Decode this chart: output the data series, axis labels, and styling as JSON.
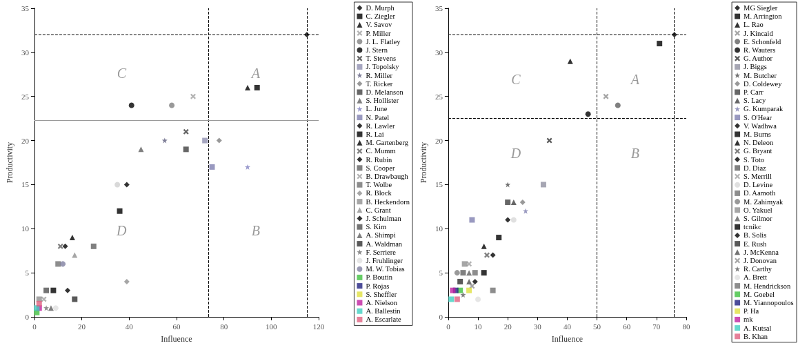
{
  "chart_data": [
    {
      "type": "scatter",
      "xlabel": "Influence",
      "ylabel": "Productivity",
      "xlim": [
        0,
        120
      ],
      "xticks": [
        0,
        20,
        40,
        60,
        80,
        100,
        120
      ],
      "ylim": [
        0,
        35
      ],
      "yticks": [
        0,
        5,
        10,
        15,
        20,
        25,
        30,
        35
      ],
      "grid": false,
      "legend": "right",
      "annotations": [
        "C",
        "A",
        "D",
        "B"
      ],
      "ref_lines": [
        {
          "axis": "y",
          "value": 32,
          "color": "#000000",
          "line_style": "dashed"
        },
        {
          "axis": "x",
          "value": 73.5,
          "color": "#000000",
          "line_style": "dashed"
        },
        {
          "axis": "x",
          "value": 115,
          "color": "#000000",
          "line_style": "dashed"
        },
        {
          "axis": "y",
          "value": 22.3,
          "color": "#999999",
          "line_style": "solid"
        }
      ],
      "series": [
        {
          "name": "D. Murph",
          "marker": "diamond",
          "color": "#000000",
          "x": [
            115
          ],
          "values": [
            32
          ]
        },
        {
          "name": "C. Ziegler",
          "marker": "square",
          "color": "#000000",
          "x": [
            94
          ],
          "values": [
            26
          ]
        },
        {
          "name": "V. Savov",
          "marker": "triangle",
          "color": "#000000",
          "x": [
            90
          ],
          "values": [
            26
          ]
        },
        {
          "name": "P. Miller",
          "marker": "cross",
          "color": "#a0a0a0",
          "x": [
            67
          ],
          "values": [
            25
          ]
        },
        {
          "name": "J. L. Flatley",
          "marker": "circle",
          "color": "#808080",
          "x": [
            58
          ],
          "values": [
            24
          ]
        },
        {
          "name": "J. Stern",
          "marker": "circle",
          "color": "#000000",
          "x": [
            41
          ],
          "values": [
            24
          ]
        },
        {
          "name": "T. Stevens",
          "marker": "cross",
          "color": "#404040",
          "x": [
            64
          ],
          "values": [
            21
          ]
        },
        {
          "name": "J. Topolsky",
          "marker": "square",
          "color": "#9090b0",
          "x": [
            72
          ],
          "values": [
            20
          ]
        },
        {
          "name": "R. Miller",
          "marker": "star",
          "color": "#606080",
          "x": [
            55
          ],
          "values": [
            20
          ]
        },
        {
          "name": "T. Ricker",
          "marker": "diamond",
          "color": "#808080",
          "x": [
            78
          ],
          "values": [
            20
          ]
        },
        {
          "name": "D. Melanson",
          "marker": "square",
          "color": "#404040",
          "x": [
            64
          ],
          "values": [
            19
          ]
        },
        {
          "name": "S. Hollister",
          "marker": "triangle",
          "color": "#606060",
          "x": [
            45
          ],
          "values": [
            19
          ]
        },
        {
          "name": "L. June",
          "marker": "star",
          "color": "#8080c0",
          "x": [
            90
          ],
          "values": [
            17
          ]
        },
        {
          "name": "N. Patel",
          "marker": "square",
          "color": "#8080b0",
          "x": [
            75
          ],
          "values": [
            17
          ]
        },
        {
          "name": "R. Lawler",
          "marker": "diamond",
          "color": "#000000",
          "x": [
            39
          ],
          "values": [
            15
          ]
        },
        {
          "name": "R. Lai",
          "marker": "square",
          "color": "#000000",
          "x": [
            36
          ],
          "values": [
            12
          ]
        },
        {
          "name": "M. Gartenberg",
          "marker": "triangle",
          "color": "#000000",
          "x": [
            16
          ],
          "values": [
            9
          ]
        },
        {
          "name": "C. Mumm",
          "marker": "cross",
          "color": "#606060",
          "x": [
            11
          ],
          "values": [
            8
          ]
        },
        {
          "name": "R. Rubin",
          "marker": "diamond",
          "color": "#000000",
          "x": [
            13
          ],
          "values": [
            8
          ]
        },
        {
          "name": "S. Cooper",
          "marker": "square",
          "color": "#606060",
          "x": [
            25
          ],
          "values": [
            8
          ]
        },
        {
          "name": "B. Drawbaugh",
          "marker": "cross",
          "color": "#a0a0a0",
          "x": [
            4
          ],
          "values": [
            2
          ]
        },
        {
          "marker": "circle",
          "color": "#d0d0d0",
          "x": [
            35
          ],
          "values": [
            15
          ]
        },
        {
          "name": "T. Wolbe",
          "marker": "square",
          "color": "#707070",
          "x": [
            10
          ],
          "values": [
            6
          ]
        },
        {
          "name": "R. Block",
          "marker": "diamond",
          "color": "#909090",
          "x": [
            39
          ],
          "values": [
            4
          ]
        },
        {
          "name": "B. Heckendorn",
          "marker": "square",
          "color": "#909090",
          "x": [
            2
          ],
          "values": [
            2
          ]
        },
        {
          "name": "C. Grant",
          "marker": "triangle",
          "color": "#909090",
          "x": [
            17
          ],
          "values": [
            7
          ]
        },
        {
          "marker": "square",
          "color": "#000000",
          "x": [
            8
          ],
          "values": [
            3
          ]
        },
        {
          "name": "J. Schulman",
          "marker": "diamond",
          "color": "#000000",
          "x": [
            14
          ],
          "values": [
            3
          ]
        },
        {
          "name": "S. Kim",
          "marker": "square",
          "color": "#505050",
          "x": [
            5
          ],
          "values": [
            3
          ]
        },
        {
          "name": "A. Shimpi",
          "marker": "triangle",
          "color": "#606060",
          "x": [
            7
          ],
          "values": [
            1
          ]
        },
        {
          "name": "A. Waldman",
          "marker": "square",
          "color": "#303030",
          "x": [
            17
          ],
          "values": [
            2
          ]
        },
        {
          "name": "F. Serriere",
          "marker": "star",
          "color": "#707070",
          "x": [
            5
          ],
          "values": [
            1
          ]
        },
        {
          "name": "J. Fruhlinger",
          "marker": "circle",
          "color": "#e0e0e0",
          "x": [
            9
          ],
          "values": [
            1
          ]
        },
        {
          "name": "M. W. Tobias",
          "marker": "circle",
          "color": "#8080a0",
          "x": [
            12
          ],
          "values": [
            6
          ]
        },
        {
          "name": "P. Boutin",
          "marker": "square",
          "color": "#40c040",
          "x": [
            1
          ],
          "values": [
            0.5
          ]
        },
        {
          "name": "P. Rojas",
          "marker": "square",
          "color": "#202080",
          "x": [
            null
          ],
          "values": [
            null
          ]
        },
        {
          "name": "S. Sheffler",
          "marker": "square",
          "color": "#e0e040",
          "x": [
            null
          ],
          "values": [
            null
          ]
        },
        {
          "name": "A. Nielson",
          "marker": "square",
          "color": "#c020a0",
          "x": [
            2
          ],
          "values": [
            1
          ]
        },
        {
          "name": "A. Ballestin",
          "marker": "square",
          "color": "#40d0c0",
          "x": [
            1
          ],
          "values": [
            1
          ]
        },
        {
          "name": "A. Escarlate",
          "marker": "square",
          "color": "#e06080",
          "x": [
            2
          ],
          "values": [
            1.5
          ]
        }
      ]
    },
    {
      "type": "scatter",
      "xlabel": "Influence",
      "ylabel": "Productivity",
      "xlim": [
        0,
        80
      ],
      "xticks": [
        0,
        10,
        20,
        30,
        40,
        50,
        60,
        70,
        80
      ],
      "ylim": [
        0,
        35
      ],
      "yticks": [
        0,
        5,
        10,
        15,
        20,
        25,
        30,
        35
      ],
      "grid": false,
      "legend": "right",
      "annotations": [
        "C",
        "A",
        "D",
        "B"
      ],
      "ref_lines": [
        {
          "axis": "y",
          "value": 32,
          "color": "#000000",
          "line_style": "dashed"
        },
        {
          "axis": "y",
          "value": 22.5,
          "color": "#000000",
          "line_style": "dashed"
        },
        {
          "axis": "x",
          "value": 50,
          "color": "#000000",
          "line_style": "dashed"
        },
        {
          "axis": "x",
          "value": 76,
          "color": "#000000",
          "line_style": "dashed"
        }
      ],
      "series": [
        {
          "name": "MG Siegler",
          "marker": "diamond",
          "color": "#000000",
          "x": [
            76
          ],
          "values": [
            32
          ]
        },
        {
          "name": "M. Arrington",
          "marker": "square",
          "color": "#000000",
          "x": [
            71
          ],
          "values": [
            31
          ]
        },
        {
          "name": "L. Rao",
          "marker": "triangle",
          "color": "#000000",
          "x": [
            41
          ],
          "values": [
            29
          ]
        },
        {
          "name": "J. Kincaid",
          "marker": "cross",
          "color": "#909090",
          "x": [
            53
          ],
          "values": [
            25
          ]
        },
        {
          "name": "E. Schonfeld",
          "marker": "circle",
          "color": "#606060",
          "x": [
            57
          ],
          "values": [
            24
          ]
        },
        {
          "name": "R. Wauters",
          "marker": "circle",
          "color": "#000000",
          "x": [
            47
          ],
          "values": [
            23
          ]
        },
        {
          "name": "G. Author",
          "marker": "cross",
          "color": "#303030",
          "x": [
            34
          ],
          "values": [
            20
          ]
        },
        {
          "name": "J. Biggs",
          "marker": "square",
          "color": "#9090a0",
          "x": [
            32
          ],
          "values": [
            15
          ]
        },
        {
          "name": "M. Butcher",
          "marker": "star",
          "color": "#505050",
          "x": [
            20
          ],
          "values": [
            15
          ]
        },
        {
          "name": "D. Coldewey",
          "marker": "diamond",
          "color": "#808080",
          "x": [
            25
          ],
          "values": [
            13
          ]
        },
        {
          "name": "P. Carr",
          "marker": "square",
          "color": "#404040",
          "x": [
            20
          ],
          "values": [
            13
          ]
        },
        {
          "name": "S. Lacy",
          "marker": "triangle",
          "color": "#404040",
          "x": [
            22
          ],
          "values": [
            13
          ]
        },
        {
          "name": "G. Kumparak",
          "marker": "star",
          "color": "#8080b0",
          "x": [
            26
          ],
          "values": [
            12
          ]
        },
        {
          "name": "S. O'Hear",
          "marker": "square",
          "color": "#8080b0",
          "x": [
            8
          ],
          "values": [
            11
          ]
        },
        {
          "name": "V. Wadhwa",
          "marker": "diamond",
          "color": "#000000",
          "x": [
            20
          ],
          "values": [
            11
          ]
        },
        {
          "name": "M. Burns",
          "marker": "square",
          "color": "#000000",
          "x": [
            17
          ],
          "values": [
            9
          ]
        },
        {
          "name": "N. Deleon",
          "marker": "triangle",
          "color": "#000000",
          "x": [
            12
          ],
          "values": [
            8
          ]
        },
        {
          "name": "G. Bryant",
          "marker": "cross",
          "color": "#606060",
          "x": [
            13
          ],
          "values": [
            7
          ]
        },
        {
          "name": "S. Toto",
          "marker": "diamond",
          "color": "#000000",
          "x": [
            15
          ],
          "values": [
            7
          ]
        },
        {
          "name": "D. Diaz",
          "marker": "square",
          "color": "#606060",
          "x": [
            5
          ],
          "values": [
            5
          ]
        },
        {
          "name": "S. Merrill",
          "marker": "cross",
          "color": "#a0a0a0",
          "x": [
            7
          ],
          "values": [
            6
          ]
        },
        {
          "name": "D. Levine",
          "marker": "circle",
          "color": "#d8d8d8",
          "x": [
            22
          ],
          "values": [
            11
          ]
        },
        {
          "name": "D. Aamoth",
          "marker": "square",
          "color": "#707070",
          "x": [
            9
          ],
          "values": [
            5
          ]
        },
        {
          "name": "M. Zahimyak",
          "marker": "circle",
          "color": "#808080",
          "x": [
            3
          ],
          "values": [
            5
          ]
        },
        {
          "name": "O. Yakuel",
          "marker": "square",
          "color": "#909090",
          "x": [
            5.5
          ],
          "values": [
            6
          ]
        },
        {
          "name": "S. Gilmor",
          "marker": "triangle",
          "color": "#606060",
          "x": [
            7
          ],
          "values": [
            5
          ]
        },
        {
          "name": "tcnikc",
          "marker": "square",
          "color": "#000000",
          "x": [
            12
          ],
          "values": [
            5
          ]
        },
        {
          "name": "B. Solis",
          "marker": "diamond",
          "color": "#000000",
          "x": [
            9
          ],
          "values": [
            4
          ]
        },
        {
          "name": "E. Rush",
          "marker": "square",
          "color": "#303030",
          "x": [
            4
          ],
          "values": [
            4
          ]
        },
        {
          "name": "J. McKenna",
          "marker": "triangle",
          "color": "#505050",
          "x": [
            7
          ],
          "values": [
            4
          ]
        },
        {
          "name": "J. Donovan",
          "marker": "cross",
          "color": "#909090",
          "x": [
            8
          ],
          "values": [
            3.5
          ]
        },
        {
          "name": "R. Carthy",
          "marker": "star",
          "color": "#606060",
          "x": [
            5
          ],
          "values": [
            2.5
          ]
        },
        {
          "name": "A. Brett",
          "marker": "circle",
          "color": "#e0e0e0",
          "x": [
            10
          ],
          "values": [
            2
          ]
        },
        {
          "name": "M. Hendrickson",
          "marker": "square",
          "color": "#707070",
          "x": [
            15
          ],
          "values": [
            3
          ]
        },
        {
          "name": "M. Goebel",
          "marker": "square",
          "color": "#40c040",
          "x": [
            4
          ],
          "values": [
            3
          ]
        },
        {
          "name": "M. Yiannopoulos",
          "marker": "square",
          "color": "#202080",
          "x": [
            2.5
          ],
          "values": [
            3
          ]
        },
        {
          "name": "P. Ha",
          "marker": "square",
          "color": "#e0e040",
          "x": [
            7
          ],
          "values": [
            3
          ]
        },
        {
          "name": "mk",
          "marker": "square",
          "color": "#c020a0",
          "x": [
            1.5
          ],
          "values": [
            3
          ]
        },
        {
          "name": "A. Kutsal",
          "marker": "square",
          "color": "#40d0c0",
          "x": [
            1
          ],
          "values": [
            2
          ]
        },
        {
          "name": "B. Khan",
          "marker": "square",
          "color": "#e06080",
          "x": [
            3
          ],
          "values": [
            2
          ]
        }
      ]
    }
  ]
}
